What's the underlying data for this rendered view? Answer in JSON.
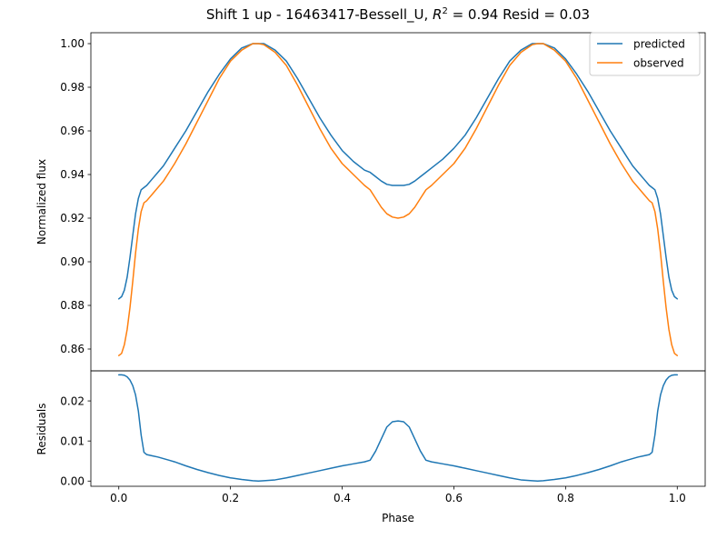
{
  "chart_data": [
    {
      "type": "line",
      "title": "Shift 1 up - 16463417-Bessell_U, R² = 0.94 Resid = 0.03",
      "title_parts": {
        "prefix": "Shift 1 up - 16463417-Bessell_U, ",
        "r_symbol": "R",
        "r_exp": "2",
        "suffix": " = 0.94 Resid = 0.03"
      },
      "xlabel": "",
      "ylabel": "Normalized flux",
      "xlim": [
        -0.05,
        1.05
      ],
      "ylim": [
        0.85,
        1.005
      ],
      "yticks": [
        0.86,
        0.88,
        0.9,
        0.92,
        0.94,
        0.96,
        0.98,
        1.0
      ],
      "ytick_labels": [
        "0.86",
        "0.88",
        "0.90",
        "0.92",
        "0.94",
        "0.96",
        "0.98",
        "1.00"
      ],
      "legend": {
        "placement": "top-right",
        "entries": [
          "predicted",
          "observed"
        ]
      },
      "series": [
        {
          "name": "predicted",
          "color": "#1f77b4",
          "x": [
            0.0,
            0.005,
            0.01,
            0.015,
            0.02,
            0.025,
            0.03,
            0.035,
            0.04,
            0.045,
            0.05,
            0.06,
            0.07,
            0.08,
            0.09,
            0.1,
            0.12,
            0.14,
            0.16,
            0.18,
            0.2,
            0.22,
            0.24,
            0.25,
            0.26,
            0.28,
            0.3,
            0.32,
            0.34,
            0.36,
            0.38,
            0.4,
            0.42,
            0.44,
            0.45,
            0.46,
            0.47,
            0.48,
            0.49,
            0.5,
            0.51,
            0.52,
            0.53,
            0.54,
            0.55,
            0.56,
            0.58,
            0.6,
            0.62,
            0.64,
            0.66,
            0.68,
            0.7,
            0.72,
            0.74,
            0.75,
            0.76,
            0.78,
            0.8,
            0.82,
            0.84,
            0.86,
            0.88,
            0.9,
            0.91,
            0.92,
            0.93,
            0.94,
            0.95,
            0.955,
            0.96,
            0.965,
            0.97,
            0.975,
            0.98,
            0.985,
            0.99,
            0.995,
            1.0
          ],
          "y": [
            0.883,
            0.884,
            0.887,
            0.893,
            0.902,
            0.912,
            0.922,
            0.929,
            0.933,
            0.934,
            0.935,
            0.938,
            0.941,
            0.944,
            0.948,
            0.952,
            0.96,
            0.969,
            0.978,
            0.986,
            0.993,
            0.998,
            1.0,
            1.0,
            1.0,
            0.997,
            0.992,
            0.984,
            0.975,
            0.966,
            0.958,
            0.951,
            0.946,
            0.942,
            0.941,
            0.939,
            0.937,
            0.9355,
            0.935,
            0.935,
            0.935,
            0.9355,
            0.937,
            0.939,
            0.941,
            0.943,
            0.947,
            0.952,
            0.958,
            0.966,
            0.975,
            0.984,
            0.992,
            0.997,
            1.0,
            1.0,
            1.0,
            0.998,
            0.993,
            0.986,
            0.978,
            0.969,
            0.96,
            0.952,
            0.948,
            0.944,
            0.941,
            0.938,
            0.935,
            0.934,
            0.933,
            0.929,
            0.922,
            0.912,
            0.902,
            0.893,
            0.887,
            0.884,
            0.883
          ]
        },
        {
          "name": "observed",
          "color": "#ff7f0e",
          "x": [
            0.0,
            0.005,
            0.01,
            0.015,
            0.02,
            0.025,
            0.03,
            0.035,
            0.04,
            0.045,
            0.05,
            0.06,
            0.07,
            0.08,
            0.09,
            0.1,
            0.12,
            0.14,
            0.16,
            0.18,
            0.2,
            0.22,
            0.24,
            0.25,
            0.26,
            0.28,
            0.3,
            0.32,
            0.34,
            0.36,
            0.38,
            0.4,
            0.42,
            0.44,
            0.45,
            0.46,
            0.47,
            0.48,
            0.49,
            0.5,
            0.51,
            0.52,
            0.53,
            0.54,
            0.55,
            0.56,
            0.58,
            0.6,
            0.62,
            0.64,
            0.66,
            0.68,
            0.7,
            0.72,
            0.74,
            0.75,
            0.76,
            0.78,
            0.8,
            0.82,
            0.84,
            0.86,
            0.88,
            0.9,
            0.91,
            0.92,
            0.93,
            0.94,
            0.95,
            0.955,
            0.96,
            0.965,
            0.97,
            0.975,
            0.98,
            0.985,
            0.99,
            0.995,
            1.0
          ],
          "y": [
            0.857,
            0.858,
            0.862,
            0.869,
            0.879,
            0.891,
            0.904,
            0.915,
            0.923,
            0.927,
            0.928,
            0.931,
            0.934,
            0.937,
            0.941,
            0.945,
            0.954,
            0.964,
            0.974,
            0.984,
            0.992,
            0.997,
            1.0,
            1.0,
            0.9995,
            0.996,
            0.99,
            0.981,
            0.971,
            0.961,
            0.952,
            0.945,
            0.94,
            0.935,
            0.933,
            0.929,
            0.925,
            0.922,
            0.9205,
            0.92,
            0.9205,
            0.922,
            0.925,
            0.929,
            0.933,
            0.935,
            0.94,
            0.945,
            0.952,
            0.961,
            0.971,
            0.981,
            0.99,
            0.996,
            0.9995,
            1.0,
            1.0,
            0.997,
            0.992,
            0.984,
            0.974,
            0.964,
            0.954,
            0.945,
            0.941,
            0.937,
            0.934,
            0.931,
            0.928,
            0.927,
            0.923,
            0.915,
            0.904,
            0.891,
            0.879,
            0.869,
            0.862,
            0.858,
            0.857
          ]
        }
      ]
    },
    {
      "type": "line",
      "title": "",
      "xlabel": "Phase",
      "ylabel": "Residuals",
      "xlim": [
        -0.05,
        1.05
      ],
      "ylim": [
        -0.0013,
        0.0275
      ],
      "xticks": [
        0.0,
        0.2,
        0.4,
        0.6,
        0.8,
        1.0
      ],
      "xtick_labels": [
        "0.0",
        "0.2",
        "0.4",
        "0.6",
        "0.8",
        "1.0"
      ],
      "yticks": [
        0.0,
        0.01,
        0.02
      ],
      "ytick_labels": [
        "0.00",
        "0.01",
        "0.02"
      ],
      "series": [
        {
          "color": "#1f77b4",
          "x": [
            0.0,
            0.005,
            0.01,
            0.015,
            0.02,
            0.025,
            0.03,
            0.035,
            0.04,
            0.045,
            0.05,
            0.06,
            0.07,
            0.08,
            0.09,
            0.1,
            0.12,
            0.14,
            0.16,
            0.18,
            0.2,
            0.22,
            0.24,
            0.25,
            0.26,
            0.28,
            0.3,
            0.32,
            0.34,
            0.36,
            0.38,
            0.4,
            0.42,
            0.44,
            0.45,
            0.46,
            0.47,
            0.48,
            0.49,
            0.5,
            0.51,
            0.52,
            0.53,
            0.54,
            0.55,
            0.56,
            0.58,
            0.6,
            0.62,
            0.64,
            0.66,
            0.68,
            0.7,
            0.72,
            0.74,
            0.75,
            0.76,
            0.78,
            0.8,
            0.82,
            0.84,
            0.86,
            0.88,
            0.9,
            0.91,
            0.92,
            0.93,
            0.94,
            0.95,
            0.955,
            0.96,
            0.965,
            0.97,
            0.975,
            0.98,
            0.985,
            0.99,
            0.995,
            1.0
          ],
          "y": [
            0.0265,
            0.0265,
            0.0264,
            0.026,
            0.0252,
            0.0238,
            0.0215,
            0.0175,
            0.0115,
            0.0072,
            0.0066,
            0.0063,
            0.006,
            0.0056,
            0.0052,
            0.0048,
            0.0038,
            0.0029,
            0.0021,
            0.0014,
            0.0008,
            0.0004,
            0.0001,
            0.0,
            0.0001,
            0.0003,
            0.0008,
            0.0014,
            0.002,
            0.0026,
            0.0032,
            0.0038,
            0.0043,
            0.0048,
            0.0052,
            0.0075,
            0.0105,
            0.0135,
            0.0148,
            0.015,
            0.0148,
            0.0135,
            0.0105,
            0.0075,
            0.0052,
            0.0048,
            0.0043,
            0.0038,
            0.0032,
            0.0026,
            0.002,
            0.0014,
            0.0008,
            0.0003,
            0.0001,
            0.0,
            0.0001,
            0.0004,
            0.0008,
            0.0014,
            0.0021,
            0.0029,
            0.0038,
            0.0048,
            0.0052,
            0.0056,
            0.006,
            0.0063,
            0.0066,
            0.0072,
            0.0115,
            0.0175,
            0.0215,
            0.0238,
            0.0252,
            0.026,
            0.0264,
            0.0265,
            0.0265
          ]
        }
      ]
    }
  ]
}
